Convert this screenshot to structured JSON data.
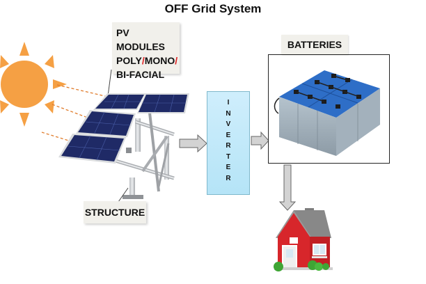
{
  "title": "OFF Grid System",
  "pv_label": {
    "line1": "PV MODULES",
    "poly": "POLY",
    "slash1": "/",
    "mono": "MONO",
    "slash2": "/",
    "line3": "BI-FACIAL"
  },
  "inverter_letters": [
    "I",
    "N",
    "V",
    "E",
    "R",
    "T",
    "E",
    "R"
  ],
  "batteries_label": "BATTERIES",
  "structure_label": "STRUCTURE",
  "colors": {
    "sun": "#f5a044",
    "panel": "#1f2a66",
    "inverter": "#c4e9fa",
    "battery_top": "#2e6ec7",
    "house_wall": "#d7262b",
    "roof": "#8a8a8a",
    "slash_red": "#e02020"
  }
}
